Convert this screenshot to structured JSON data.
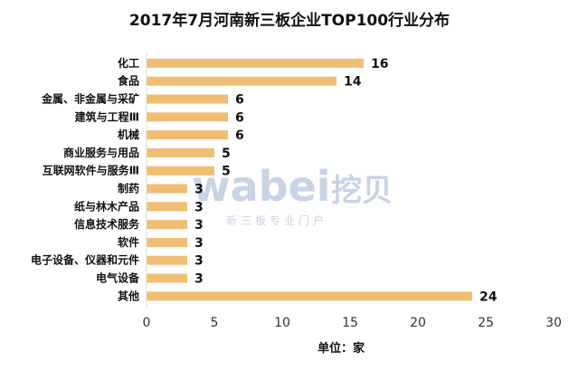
{
  "chart_data": {
    "type": "bar",
    "orientation": "horizontal",
    "title": "2017年7月河南新三板企业TOP100行业分布",
    "xlabel": "单位：家",
    "ylabel": "",
    "categories": [
      "化工",
      "食品",
      "金属、非金属与采矿",
      "建筑与工程Ⅲ",
      "机械",
      "商业服务与用品",
      "互联网软件与服务Ⅲ",
      "制药",
      "纸与林木产品",
      "信息技术服务",
      "软件",
      "电子设备、仪器和元件",
      "电气设备",
      "其他"
    ],
    "values": [
      16,
      14,
      6,
      6,
      6,
      5,
      5,
      3,
      3,
      3,
      3,
      3,
      3,
      24
    ],
    "xlim": [
      0,
      30
    ],
    "ticks": [
      0,
      5,
      10,
      15,
      20,
      25,
      30
    ],
    "grid": false,
    "legend": "none",
    "bar_color": "#f0bf73"
  },
  "watermark": {
    "logo_text": "wabei",
    "logo_cn": "挖贝",
    "tagline": "新三板专业门户"
  }
}
